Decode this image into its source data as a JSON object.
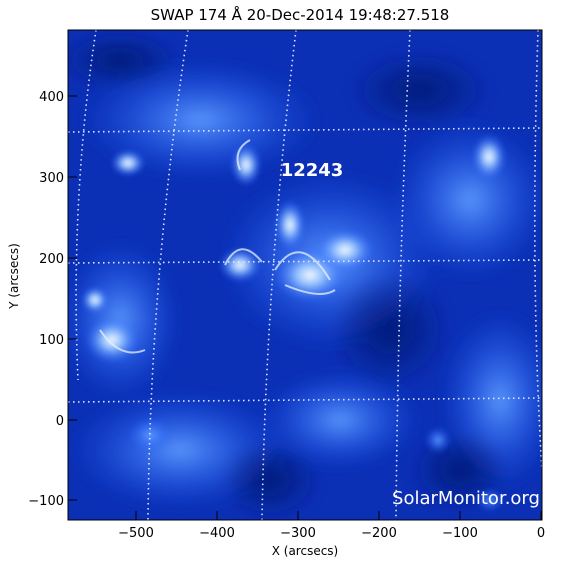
{
  "figure": {
    "title": "SWAP 174 Å 20-Dec-2014 19:48:27.518",
    "xlabel": "X (arcsecs)",
    "ylabel": "Y (arcsecs)",
    "x_ticks": [
      "−500",
      "−400",
      "−300",
      "−200",
      "−100",
      "0"
    ],
    "y_ticks": [
      "400",
      "300",
      "200",
      "100",
      "0",
      "−100"
    ],
    "active_region": "12243",
    "watermark": "SolarMonitor.org"
  },
  "colors": {
    "background": "#0a2fb3",
    "bright": "#e8f3ff",
    "grid": "#dbe6ff"
  }
}
